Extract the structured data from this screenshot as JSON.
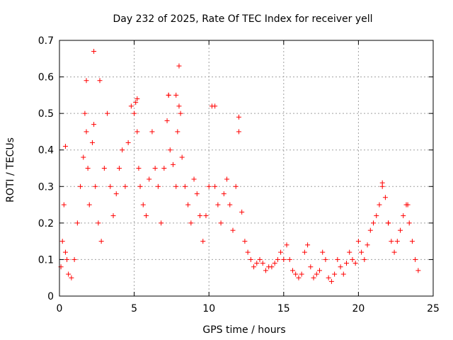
{
  "chart_data": {
    "type": "scatter",
    "title": "Day 232 of 2025, Rate Of TEC Index for receiver yell",
    "xlabel": "GPS time / hours",
    "ylabel": "ROTI / TECUs",
    "xlim": [
      0,
      25
    ],
    "ylim": [
      0,
      0.7
    ],
    "x_ticks": [
      "0",
      "5",
      "10",
      "15",
      "20",
      "25"
    ],
    "y_ticks": [
      "0",
      "0.1",
      "0.2",
      "0.3",
      "0.4",
      "0.5",
      "0.6",
      "0.7"
    ],
    "grid": true,
    "marker": "plus",
    "color": "#ff0000",
    "series": [
      {
        "x": [
          0.1,
          0.2,
          0.3,
          0.4,
          0.5,
          0.6,
          0.8,
          1.0,
          1.2,
          1.4,
          1.6,
          1.7,
          1.8,
          1.9,
          2.0,
          2.2,
          2.3,
          2.4,
          2.6,
          2.8,
          3.0,
          3.2,
          3.4,
          3.6,
          3.8,
          4.0,
          4.2,
          4.4,
          4.6,
          4.8,
          5.0,
          5.1,
          5.2,
          5.3,
          5.4,
          5.6,
          5.8,
          6.0,
          6.2,
          6.4,
          6.6,
          6.8,
          7.0,
          7.2,
          7.3,
          7.4,
          7.6,
          7.8,
          7.9,
          8.0,
          8.1,
          8.2,
          8.4,
          8.6,
          8.8,
          9.0,
          9.2,
          9.4,
          9.6,
          9.8,
          10.0,
          10.2,
          10.4,
          10.6,
          10.8,
          11.0,
          11.2,
          11.4,
          11.6,
          11.8,
          12.0,
          12.2,
          12.4,
          12.6,
          12.8,
          13.0,
          13.2,
          13.4,
          13.6,
          13.8,
          14.0,
          14.2,
          14.4,
          14.6,
          14.8,
          15.0,
          15.2,
          15.4,
          15.6,
          15.8,
          16.0,
          16.2,
          16.4,
          16.6,
          16.8,
          17.0,
          17.2,
          17.4,
          17.6,
          17.8,
          18.0,
          18.2,
          18.4,
          18.6,
          18.8,
          19.0,
          19.2,
          19.4,
          19.6,
          19.8,
          20.0,
          20.2,
          20.4,
          20.6,
          20.8,
          21.0,
          21.2,
          21.4,
          21.6,
          21.8,
          22.0,
          22.2,
          22.4,
          22.6,
          22.8,
          23.0,
          23.2,
          23.4,
          23.6,
          23.8,
          24.0,
          2.3,
          2.7,
          8.0,
          1.8,
          7.3,
          0.4,
          10.4,
          12.0,
          5.2,
          7.8,
          21.6,
          23.3,
          22.0
        ],
        "y": [
          0.08,
          0.15,
          0.25,
          0.12,
          0.1,
          0.06,
          0.05,
          0.1,
          0.2,
          0.3,
          0.38,
          0.5,
          0.45,
          0.35,
          0.25,
          0.42,
          0.47,
          0.3,
          0.2,
          0.15,
          0.35,
          0.5,
          0.3,
          0.22,
          0.28,
          0.35,
          0.4,
          0.3,
          0.42,
          0.52,
          0.5,
          0.53,
          0.45,
          0.35,
          0.3,
          0.25,
          0.22,
          0.32,
          0.45,
          0.35,
          0.3,
          0.2,
          0.35,
          0.48,
          0.55,
          0.4,
          0.36,
          0.3,
          0.45,
          0.52,
          0.5,
          0.38,
          0.3,
          0.25,
          0.2,
          0.32,
          0.28,
          0.22,
          0.15,
          0.22,
          0.3,
          0.52,
          0.3,
          0.25,
          0.2,
          0.28,
          0.32,
          0.25,
          0.18,
          0.3,
          0.45,
          0.23,
          0.15,
          0.12,
          0.1,
          0.08,
          0.09,
          0.1,
          0.09,
          0.07,
          0.08,
          0.08,
          0.09,
          0.1,
          0.12,
          0.1,
          0.14,
          0.1,
          0.07,
          0.06,
          0.05,
          0.06,
          0.12,
          0.14,
          0.08,
          0.05,
          0.06,
          0.07,
          0.12,
          0.1,
          0.05,
          0.04,
          0.06,
          0.1,
          0.08,
          0.06,
          0.09,
          0.12,
          0.1,
          0.09,
          0.15,
          0.12,
          0.1,
          0.14,
          0.18,
          0.2,
          0.22,
          0.25,
          0.3,
          0.27,
          0.2,
          0.15,
          0.12,
          0.15,
          0.18,
          0.22,
          0.25,
          0.2,
          0.15,
          0.1,
          0.07,
          0.67,
          0.59,
          0.63,
          0.59,
          0.55,
          0.41,
          0.52,
          0.49,
          0.54,
          0.55,
          0.31,
          0.25,
          0.2
        ]
      }
    ]
  }
}
